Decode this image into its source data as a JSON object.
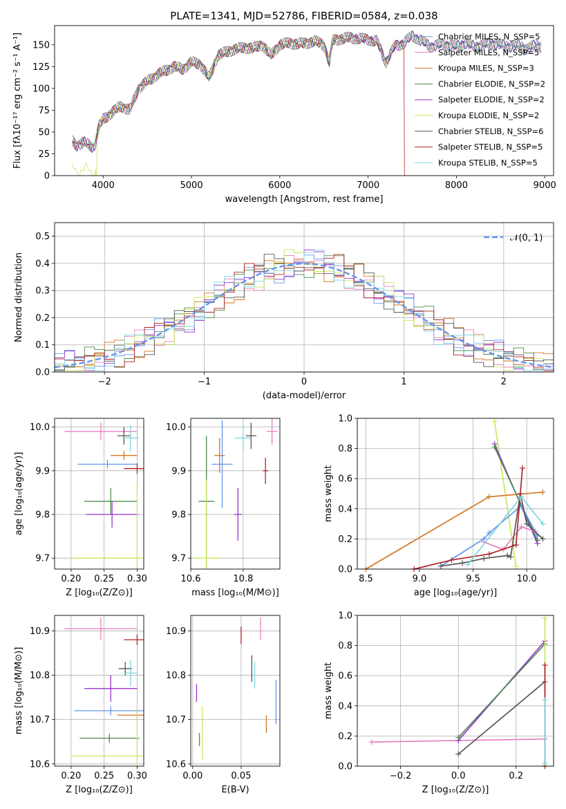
{
  "title": "PLATE=1341, MJD=52786, FIBERID=0584, z=0.038",
  "colors": {
    "chabrier_miles": "#6495ed",
    "salpeter_miles": "#e67fbf",
    "kroupa_miles": "#d2761f",
    "chabrier_elodie": "#4c8a4c",
    "salpeter_elodie": "#9932cc",
    "kroupa_elodie": "#c7e85c",
    "chabrier_stelib": "#555555",
    "salpeter_stelib": "#b22222",
    "kroupa_stelib": "#7fd4e0",
    "gauss": "#6495ed"
  },
  "chart_data": [
    {
      "id": "spectrum",
      "type": "line",
      "xlabel": "wavelength [Angstrom, rest frame]",
      "ylabel": "Flux [fλ10⁻¹⁷ erg cm⁻² s⁻¹ A⁻¹]",
      "xlim": [
        3450,
        9100
      ],
      "ylim": [
        0,
        172
      ],
      "xticks": [
        "4000",
        "5000",
        "6000",
        "7000",
        "8000",
        "9000"
      ],
      "yticks": [
        "0",
        "25",
        "50",
        "75",
        "100",
        "125",
        "150"
      ],
      "legend": [
        "Chabrier MILES, N_SSP=5",
        "Salpeter MILES, N_SSP=5",
        "Kroupa MILES, N_SSP=3",
        "Chabrier ELODIE, N_SSP=2",
        "Salpeter ELODIE, N_SSP=2",
        "Kroupa ELODIE, N_SSP=2",
        "Chabrier STELIB, N_SSP=6",
        "Salpeter STELIB, N_SSP=5",
        "Kroupa STELIB, N_SSP=5"
      ],
      "legend_colors": [
        "chabrier_miles",
        "salpeter_miles",
        "kroupa_miles",
        "chabrier_elodie",
        "salpeter_elodie",
        "kroupa_elodie",
        "chabrier_stelib",
        "salpeter_stelib",
        "kroupa_stelib"
      ],
      "continuum": [
        [
          3650,
          40
        ],
        [
          3700,
          35
        ],
        [
          3800,
          38
        ],
        [
          3900,
          32
        ],
        [
          3950,
          55
        ],
        [
          4000,
          65
        ],
        [
          4100,
          72
        ],
        [
          4200,
          80
        ],
        [
          4300,
          75
        ],
        [
          4400,
          100
        ],
        [
          4500,
          108
        ],
        [
          4600,
          115
        ],
        [
          4700,
          120
        ],
        [
          4800,
          125
        ],
        [
          4900,
          122
        ],
        [
          5000,
          130
        ],
        [
          5100,
          128
        ],
        [
          5200,
          112
        ],
        [
          5300,
          138
        ],
        [
          5400,
          142
        ],
        [
          5500,
          145
        ],
        [
          5600,
          147
        ],
        [
          5700,
          146
        ],
        [
          5800,
          150
        ],
        [
          5900,
          138
        ],
        [
          6000,
          150
        ],
        [
          6100,
          152
        ],
        [
          6200,
          151
        ],
        [
          6300,
          152
        ],
        [
          6400,
          154
        ],
        [
          6500,
          150
        ],
        [
          6560,
          130
        ],
        [
          6600,
          155
        ],
        [
          6700,
          157
        ],
        [
          6800,
          158
        ],
        [
          6900,
          157
        ],
        [
          7000,
          156
        ],
        [
          7100,
          154
        ],
        [
          7200,
          130
        ],
        [
          7300,
          148
        ],
        [
          7400,
          152
        ],
        [
          7500,
          160
        ],
        [
          7600,
          155
        ],
        [
          7700,
          148
        ],
        [
          7800,
          150
        ],
        [
          7900,
          150
        ],
        [
          8000,
          148
        ],
        [
          8100,
          152
        ],
        [
          8200,
          148
        ],
        [
          8300,
          150
        ],
        [
          8400,
          152
        ],
        [
          8500,
          150
        ],
        [
          8600,
          148
        ],
        [
          8700,
          150
        ],
        [
          8800,
          145
        ],
        [
          8900,
          150
        ],
        [
          8960,
          148
        ]
      ],
      "cutoffs": [
        {
          "series": "kroupa_elodie",
          "at": 3920
        },
        {
          "series": "kroupa_elodie",
          "at": 6780
        },
        {
          "series": "salpeter_stelib",
          "at": 7410
        }
      ]
    },
    {
      "id": "residual_hist",
      "type": "histogram",
      "xlabel": "(data-model)/error",
      "ylabel": "Normed distribution",
      "xlim": [
        -2.5,
        2.5
      ],
      "ylim": [
        0,
        0.55
      ],
      "xticks": [
        "−2",
        "−1",
        "0",
        "1",
        "2"
      ],
      "yticks": [
        "0.0",
        "0.1",
        "0.2",
        "0.3",
        "0.4",
        "0.5"
      ],
      "legend": [
        "𝒩(0, 1)"
      ],
      "bin_width": 0.1,
      "curve": "standard normal pdf"
    },
    {
      "id": "age_vs_Z",
      "type": "errorbar",
      "xlabel": "Z [log₁₀(Z/Z⊙)]",
      "ylabel": "age  [log₁₀(age/yr)]",
      "xlim": [
        0.175,
        0.31
      ],
      "ylim": [
        9.675,
        10.02
      ],
      "xticks": [
        "0.20",
        "0.25",
        "0.30"
      ],
      "yticks": [
        "9.7",
        "9.8",
        "9.9",
        "10.0"
      ],
      "points": [
        {
          "s": "salpeter_miles",
          "x": 0.245,
          "y": 9.99,
          "xerr": 0.055,
          "yerr": 0.02
        },
        {
          "s": "chabrier_stelib",
          "x": 0.28,
          "y": 9.98,
          "xerr": 0.01,
          "yerr": 0.02
        },
        {
          "s": "kroupa_stelib",
          "x": 0.29,
          "y": 9.975,
          "xerr": 0.012,
          "yerr": 0.03
        },
        {
          "s": "kroupa_miles",
          "x": 0.28,
          "y": 9.935,
          "xerr": 0.02,
          "yerr": 0.01
        },
        {
          "s": "chabrier_miles",
          "x": 0.255,
          "y": 9.915,
          "xerr": 0.045,
          "yerr": 0.01
        },
        {
          "s": "salpeter_stelib",
          "x": 0.3,
          "y": 9.905,
          "xerr": 0.02,
          "yerr": 0.012
        },
        {
          "s": "chabrier_elodie",
          "x": 0.26,
          "y": 9.83,
          "xerr": 0.04,
          "yerr": 0.03
        },
        {
          "s": "salpeter_elodie",
          "x": 0.262,
          "y": 9.8,
          "xerr": 0.04,
          "yerr": 0.03
        },
        {
          "s": "kroupa_elodie",
          "x": 0.3,
          "y": 9.7,
          "xerr": 0.1,
          "yerr": 0.17
        }
      ]
    },
    {
      "id": "age_vs_mass",
      "type": "errorbar",
      "xlabel": "mass [log₁₀(M/M⊙)]",
      "ylabel": "",
      "xlim": [
        10.6,
        10.94
      ],
      "ylim": [
        9.675,
        10.02
      ],
      "xticks": [
        "10.6",
        "10.8"
      ],
      "yticks": [
        "9.7",
        "9.8",
        "9.9",
        "10.0"
      ],
      "points": [
        {
          "s": "salpeter_miles",
          "x": 10.91,
          "y": 9.99,
          "xerr": 0.02,
          "yerr": 0.03
        },
        {
          "s": "chabrier_stelib",
          "x": 10.83,
          "y": 9.98,
          "xerr": 0.02,
          "yerr": 0.03
        },
        {
          "s": "kroupa_stelib",
          "x": 10.8,
          "y": 9.975,
          "xerr": 0.03,
          "yerr": 0.03
        },
        {
          "s": "kroupa_miles",
          "x": 10.71,
          "y": 9.935,
          "xerr": 0.02,
          "yerr": 0.04
        },
        {
          "s": "chabrier_miles",
          "x": 10.72,
          "y": 9.915,
          "xerr": 0.04,
          "yerr": 0.1
        },
        {
          "s": "salpeter_stelib",
          "x": 10.885,
          "y": 9.9,
          "xerr": 0.01,
          "yerr": 0.03
        },
        {
          "s": "chabrier_elodie",
          "x": 10.66,
          "y": 9.83,
          "xerr": 0.03,
          "yerr": 0.15
        },
        {
          "s": "salpeter_elodie",
          "x": 10.78,
          "y": 9.8,
          "xerr": 0.015,
          "yerr": 0.06
        },
        {
          "s": "kroupa_elodie",
          "x": 10.66,
          "y": 9.7,
          "xerr": 0.05,
          "yerr": 0.18
        }
      ]
    },
    {
      "id": "massweight_vs_age",
      "type": "line",
      "xlabel": "age  [log₁₀(age/yr)]",
      "ylabel": "mass weight",
      "xlim": [
        8.42,
        10.25
      ],
      "ylim": [
        0,
        1
      ],
      "xticks": [
        "8.5",
        "9.0",
        "9.5",
        "10.0"
      ],
      "yticks": [
        "0.0",
        "0.2",
        "0.4",
        "0.6",
        "0.8",
        "1.0"
      ],
      "series": [
        {
          "s": "kroupa_elodie",
          "x": [
            9.7,
            9.9
          ],
          "y": [
            0.98,
            0.02
          ]
        },
        {
          "s": "salpeter_elodie",
          "x": [
            9.7,
            10.1
          ],
          "y": [
            0.83,
            0.17
          ]
        },
        {
          "s": "chabrier_elodie",
          "x": [
            9.7,
            10.1
          ],
          "y": [
            0.81,
            0.19
          ]
        },
        {
          "s": "kroupa_miles",
          "x": [
            8.5,
            9.65,
            10.15
          ],
          "y": [
            0.0,
            0.48,
            0.51
          ]
        },
        {
          "s": "chabrier_miles",
          "x": [
            9.2,
            9.6,
            9.65,
            9.95,
            10.1
          ],
          "y": [
            0.02,
            0.2,
            0.24,
            0.42,
            0.22
          ]
        },
        {
          "s": "salpeter_miles",
          "x": [
            9.6,
            9.78,
            9.95,
            10.08
          ],
          "y": [
            0.18,
            0.13,
            0.28,
            0.25
          ]
        },
        {
          "s": "chabrier_stelib",
          "x": [
            9.2,
            9.4,
            9.6,
            9.82,
            9.85,
            9.94,
            10.0,
            10.15
          ],
          "y": [
            0.02,
            0.04,
            0.07,
            0.09,
            0.08,
            0.5,
            0.3,
            0.2
          ]
        },
        {
          "s": "salpeter_stelib",
          "x": [
            8.95,
            9.3,
            9.65,
            9.9,
            9.96
          ],
          "y": [
            0.0,
            0.06,
            0.1,
            0.16,
            0.67
          ]
        },
        {
          "s": "kroupa_stelib",
          "x": [
            9.45,
            9.95,
            10.15
          ],
          "y": [
            0.03,
            0.48,
            0.3
          ]
        }
      ]
    },
    {
      "id": "mass_vs_Z",
      "type": "errorbar",
      "xlabel": "Z [log₁₀(Z/Z⊙)]",
      "ylabel": "mass [log₁₀(M/M⊙)]",
      "xlim": [
        0.175,
        0.31
      ],
      "ylim": [
        10.595,
        10.935
      ],
      "xticks": [
        "0.20",
        "0.25",
        "0.30"
      ],
      "yticks": [
        "10.6",
        "10.7",
        "10.8",
        "10.9"
      ],
      "points": [
        {
          "s": "salpeter_miles",
          "x": 0.245,
          "y": 10.905,
          "xerr": 0.055,
          "yerr": 0.025
        },
        {
          "s": "salpeter_stelib",
          "x": 0.3,
          "y": 10.88,
          "xerr": 0.02,
          "yerr": 0.012
        },
        {
          "s": "chabrier_stelib",
          "x": 0.282,
          "y": 10.815,
          "xerr": 0.01,
          "yerr": 0.015
        },
        {
          "s": "kroupa_stelib",
          "x": 0.29,
          "y": 10.805,
          "xerr": 0.01,
          "yerr": 0.03
        },
        {
          "s": "salpeter_elodie",
          "x": 0.26,
          "y": 10.77,
          "xerr": 0.04,
          "yerr": 0.03
        },
        {
          "s": "chabrier_miles",
          "x": 0.26,
          "y": 10.72,
          "xerr": 0.055,
          "yerr": 0.01
        },
        {
          "s": "kroupa_miles",
          "x": 0.3,
          "y": 10.71,
          "xerr": 0.03,
          "yerr": 0.01
        },
        {
          "s": "chabrier_elodie",
          "x": 0.258,
          "y": 10.658,
          "xerr": 0.045,
          "yerr": 0.01
        },
        {
          "s": "kroupa_elodie",
          "x": 0.3,
          "y": 10.618,
          "xerr": 0.1,
          "yerr": 0.11
        }
      ]
    },
    {
      "id": "mass_vs_ebv",
      "type": "errorbar",
      "xlabel": "E(B-V)",
      "ylabel": "",
      "xlim": [
        -0.002,
        0.09
      ],
      "ylim": [
        10.595,
        10.935
      ],
      "xticks": [
        "0.00",
        "0.05"
      ],
      "yticks": [
        "10.6",
        "10.7",
        "10.8",
        "10.9"
      ],
      "points": [
        {
          "s": "salpeter_stelib",
          "x": 0.05,
          "y": 10.89,
          "xerr": 0,
          "yerr": 0.02
        },
        {
          "s": "salpeter_miles",
          "x": 0.07,
          "y": 10.905,
          "xerr": 0,
          "yerr": 0.025
        },
        {
          "s": "chabrier_stelib",
          "x": 0.061,
          "y": 10.815,
          "xerr": 0,
          "yerr": 0.03
        },
        {
          "s": "kroupa_stelib",
          "x": 0.064,
          "y": 10.8,
          "xerr": 0,
          "yerr": 0.03
        },
        {
          "s": "salpeter_elodie",
          "x": 0.004,
          "y": 10.76,
          "xerr": 0,
          "yerr": 0.02
        },
        {
          "s": "chabrier_miles",
          "x": 0.086,
          "y": 10.74,
          "xerr": 0,
          "yerr": 0.05
        },
        {
          "s": "kroupa_miles",
          "x": 0.076,
          "y": 10.69,
          "xerr": 0,
          "yerr": 0.02
        },
        {
          "s": "chabrier_elodie",
          "x": 0.007,
          "y": 10.655,
          "xerr": 0,
          "yerr": 0.015
        },
        {
          "s": "kroupa_elodie",
          "x": 0.01,
          "y": 10.67,
          "xerr": 0,
          "yerr": 0.06
        }
      ]
    },
    {
      "id": "massweight_vs_Z",
      "type": "line",
      "xlabel": "Z [log₁₀(Z/Z⊙)]",
      "ylabel": "mass weight",
      "xlim": [
        -0.35,
        0.33
      ],
      "ylim": [
        0,
        1
      ],
      "xticks": [
        "−0.2",
        "0.0",
        "0.2"
      ],
      "yticks": [
        "0.0",
        "0.2",
        "0.4",
        "0.6",
        "0.8",
        "1.0"
      ],
      "series": [
        {
          "s": "salpeter_miles",
          "x": [
            -0.3,
            0.3
          ],
          "y": [
            0.16,
            0.18
          ]
        },
        {
          "s": "salpeter_elodie",
          "x": [
            0.0,
            0.3
          ],
          "y": [
            0.17,
            0.83
          ]
        },
        {
          "s": "chabrier_elodie",
          "x": [
            0.0,
            0.3
          ],
          "y": [
            0.19,
            0.81
          ]
        },
        {
          "s": "chabrier_stelib",
          "x": [
            0.0,
            0.3
          ],
          "y": [
            0.08,
            0.56
          ]
        },
        {
          "s": "kroupa_elodie",
          "x": [
            0.3,
            0.3
          ],
          "y": [
            0.0,
            0.98
          ]
        },
        {
          "s": "salpeter_stelib",
          "x": [
            0.3,
            0.3
          ],
          "y": [
            0.0,
            0.67
          ]
        },
        {
          "s": "kroupa_stelib",
          "x": [
            0.3,
            0.3
          ],
          "y": [
            0.02,
            0.44
          ]
        }
      ]
    }
  ]
}
